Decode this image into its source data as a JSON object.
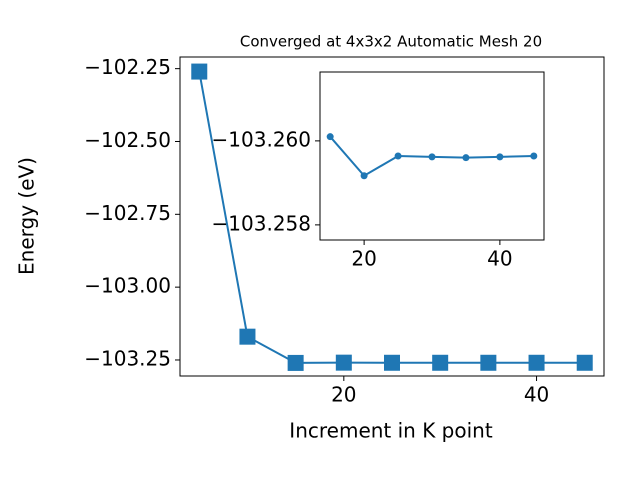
{
  "chart_data": [
    {
      "type": "line",
      "title": "Converged at 4x3x2 Automatic Mesh 20",
      "x_label": "Increment in K point",
      "y_label": "Energy (eV)",
      "x": [
        5,
        10,
        15,
        20,
        25,
        30,
        35,
        40,
        45
      ],
      "series": [
        {
          "color": "#1f77b4",
          "marker": "square",
          "values": [
            -102.26,
            -103.17,
            -103.2601,
            -103.2592,
            -103.2596,
            -103.2596,
            -103.2596,
            -103.2596,
            -103.2596
          ]
        }
      ],
      "xlim": [
        3,
        47
      ],
      "xticks": [
        20,
        40
      ],
      "ylim": [
        -103.305,
        -102.21
      ],
      "yticks": [
        {
          "value": -102.25,
          "label": "−102.25"
        },
        {
          "value": -102.5,
          "label": "−102.50"
        },
        {
          "value": -102.75,
          "label": "−102.75"
        },
        {
          "value": -103.0,
          "label": "−103.00"
        },
        {
          "value": -103.25,
          "label": "−103.25"
        }
      ]
    },
    {
      "type": "line",
      "x": [
        15,
        20,
        25,
        30,
        35,
        40,
        45
      ],
      "series": [
        {
          "color": "#1f77b4",
          "marker": "circle",
          "values": [
            -103.2601,
            -103.25917,
            -103.25964,
            -103.25962,
            -103.2596,
            -103.25962,
            -103.25964
          ]
        }
      ],
      "xlim": [
        13.5,
        46.5
      ],
      "xticks": [
        20,
        40
      ],
      "ylim": [
        -103.25764,
        -103.26164
      ],
      "yticks": [
        {
          "value": -103.26,
          "label": "−103.260"
        },
        {
          "value": -103.258,
          "label": "−103.258"
        }
      ]
    }
  ]
}
